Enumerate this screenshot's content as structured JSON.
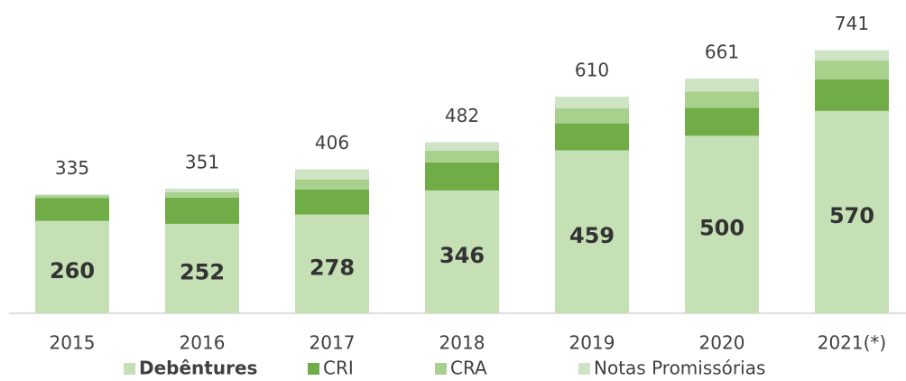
{
  "chart_data": {
    "type": "stacked_bar",
    "categories": [
      "2015",
      "2016",
      "2017",
      "2018",
      "2019",
      "2020",
      "2021(*)"
    ],
    "series": [
      {
        "name": "Debêntures",
        "color": "#c5e0b4",
        "values": [
          260,
          252,
          278,
          346,
          459,
          500,
          570
        ]
      },
      {
        "name": "CRI",
        "color": "#70ad47",
        "values": [
          65,
          74,
          71,
          79,
          76,
          79,
          89
        ]
      },
      {
        "name": "CRA",
        "color": "#a9d18e",
        "values": [
          7,
          15,
          28,
          33,
          43,
          46,
          53
        ]
      },
      {
        "name": "Notas Promissórias",
        "color": "#cfe3c5",
        "values": [
          3,
          10,
          29,
          24,
          32,
          36,
          29
        ]
      }
    ],
    "totals": [
      335,
      351,
      406,
      482,
      610,
      661,
      741
    ],
    "ylim": [
      0,
      880
    ]
  }
}
